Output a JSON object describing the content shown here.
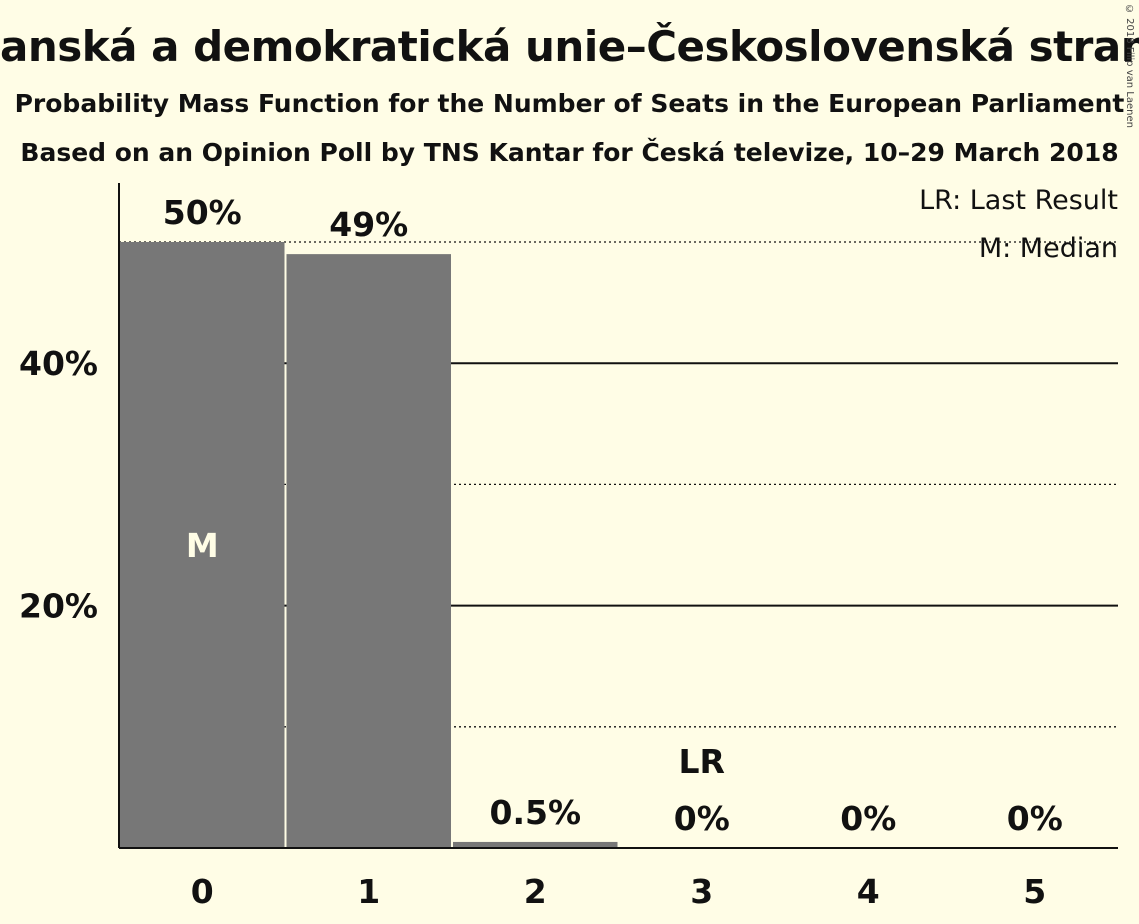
{
  "title": "anská a demokratická unie–Československá strana lidov",
  "subtitle": "Probability Mass Function for the Number of Seats in the European Parliament",
  "subtitle2": "Based on an Opinion Poll by TNS Kantar for Česká televize, 10–29 March 2018",
  "copyright": "© 2018 Filip van Laenen",
  "legend": {
    "last_result": "LR: Last Result",
    "median": "M: Median"
  },
  "colors": {
    "background": "#fffde6",
    "bar": "#777777",
    "text": "#111111"
  },
  "chart_data": {
    "type": "bar",
    "categories": [
      "0",
      "1",
      "2",
      "3",
      "4",
      "5"
    ],
    "values": [
      50,
      49,
      0.5,
      0,
      0,
      0
    ],
    "value_labels": [
      "50%",
      "49%",
      "0.5%",
      "0%",
      "0%",
      "0%"
    ],
    "ylim": [
      0,
      55
    ],
    "yticks": [
      20,
      40
    ],
    "ytick_labels": [
      "20%",
      "40%"
    ],
    "minor_gridlines": [
      10,
      30,
      50
    ],
    "median_category": "0",
    "median_label": "M",
    "last_result_category": "3",
    "last_result_label": "LR",
    "grid": true,
    "legend_position": "top-right"
  }
}
